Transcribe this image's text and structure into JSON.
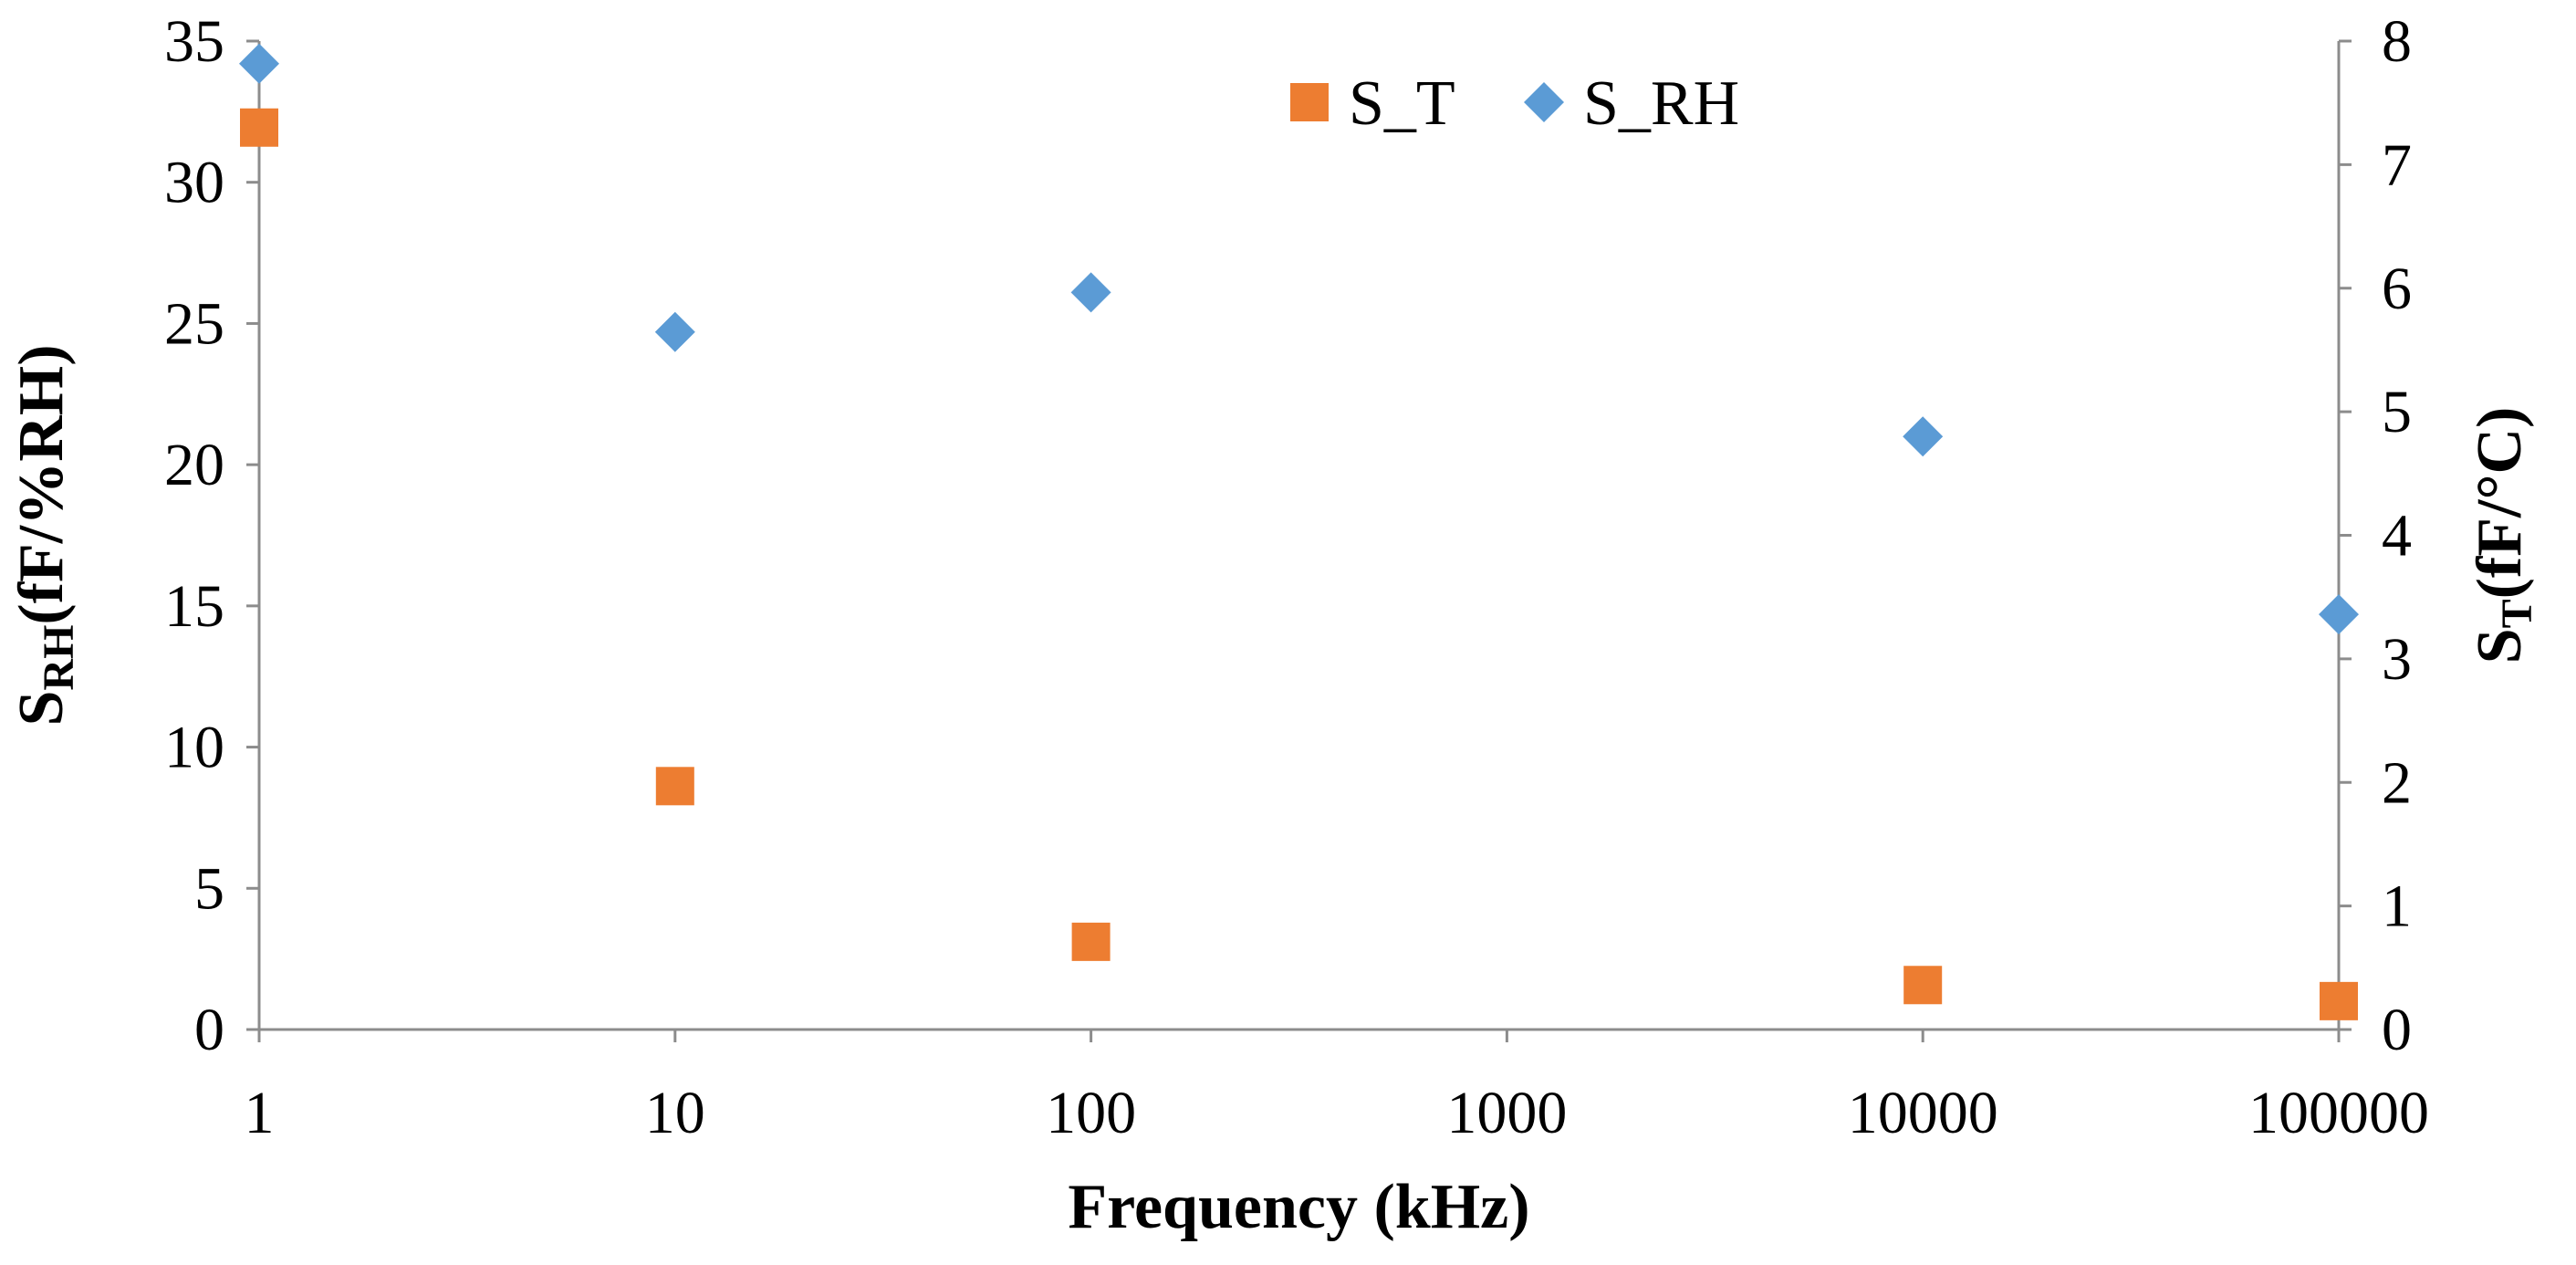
{
  "chart_data": {
    "type": "scatter",
    "title": "",
    "xlabel": "Frequency (kHz)",
    "xscale": "log",
    "xlim": [
      1,
      100000
    ],
    "x_ticks": [
      "1",
      "10",
      "100",
      "1000",
      "10000",
      "100000"
    ],
    "ylabel_left": {
      "main": "S",
      "sub": "RH",
      "rest": "(fF/%RH)"
    },
    "ylim_left": [
      0,
      35
    ],
    "y_ticks_left": [
      "0",
      "5",
      "10",
      "15",
      "20",
      "25",
      "30",
      "35"
    ],
    "ylabel_right": {
      "main": "S",
      "sub": "T",
      "rest": "(fF/°C)"
    },
    "ylim_right": [
      0,
      8
    ],
    "y_ticks_right": [
      "0",
      "1",
      "2",
      "3",
      "4",
      "5",
      "6",
      "7",
      "8"
    ],
    "legend_position": "top-center",
    "series": [
      {
        "name": "S_T",
        "axis": "right",
        "marker": "square",
        "color": "#ED7D31",
        "x": [
          1,
          10,
          100,
          10000,
          100000
        ],
        "y": [
          7.3,
          1.97,
          0.71,
          0.36,
          0.23
        ]
      },
      {
        "name": "S_RH",
        "axis": "left",
        "marker": "diamond",
        "color": "#5B9BD5",
        "x": [
          1,
          10,
          100,
          10000,
          100000
        ],
        "y": [
          34.2,
          24.7,
          26.1,
          21.0,
          14.7
        ]
      }
    ]
  }
}
